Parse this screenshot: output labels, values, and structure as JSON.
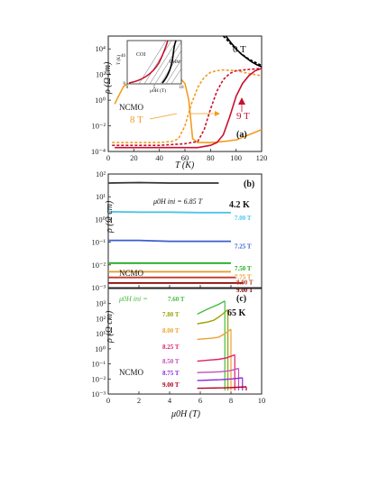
{
  "figure": {
    "ylabel_rho": "ρ (Ω cm)",
    "panels": [
      {
        "key": "a",
        "label": "(a)"
      },
      {
        "key": "b",
        "label": "(b)"
      },
      {
        "key": "c",
        "label": "(c)"
      }
    ]
  },
  "chart_data": [
    {
      "panel": "(a)",
      "type": "line",
      "xlabel": "T (K)",
      "ylabel": "ρ (Ω cm)",
      "xlim": [
        0,
        120
      ],
      "ylim_log": [
        0.0001,
        100000
      ],
      "xticks": [
        "0",
        "20",
        "40",
        "60",
        "80",
        "100",
        "120"
      ],
      "yticks": [
        "10⁻⁴",
        "10⁻²",
        "10⁰",
        "10²",
        "10⁴"
      ],
      "sample": "NCMO",
      "annotations": [
        "0 T",
        "8 T",
        "9 T"
      ],
      "colors": {
        "0T": "#000000",
        "8T": "#f39c1f",
        "9T": "#c8102e"
      },
      "series": [
        {
          "name": "0 T",
          "style": "solid",
          "x": [
            92,
            96,
            100,
            104,
            108,
            112,
            116,
            120
          ],
          "y": [
            100000,
            30000,
            10000,
            4000,
            2000,
            1000,
            600,
            400
          ]
        },
        {
          "name": "0 T",
          "style": "dashed",
          "x": [
            90,
            95,
            100,
            105,
            110,
            115,
            120
          ],
          "y": [
            100000,
            30000,
            9000,
            3500,
            1600,
            900,
            500
          ]
        },
        {
          "name": "8 T",
          "style": "solid",
          "x": [
            5,
            8,
            12,
            20,
            30,
            40,
            50,
            55,
            60,
            63,
            66,
            70,
            75,
            80,
            90,
            100,
            110,
            120
          ],
          "y": [
            0.5,
            2,
            12,
            40,
            60,
            80,
            100,
            70,
            20,
            1,
            0.001,
            0.0005,
            0.0005,
            0.0005,
            0.0006,
            0.0008,
            0.002,
            0.005
          ]
        },
        {
          "name": "8 T",
          "style": "dashed",
          "x": [
            3,
            10,
            20,
            30,
            40,
            50,
            55,
            60,
            65,
            70,
            75,
            80,
            85,
            90,
            100,
            110,
            120
          ],
          "y": [
            0.0005,
            0.0005,
            0.0005,
            0.0005,
            0.0005,
            0.0006,
            0.001,
            0.01,
            0.5,
            10,
            60,
            150,
            200,
            230,
            200,
            120,
            80
          ]
        },
        {
          "name": "9 T",
          "style": "solid",
          "x": [
            5,
            20,
            40,
            60,
            70,
            80,
            85,
            90,
            95,
            100,
            105,
            110,
            115,
            120
          ],
          "y": [
            0.0002,
            0.0002,
            0.0002,
            0.0002,
            0.0002,
            0.0003,
            0.0005,
            0.002,
            0.05,
            2,
            20,
            80,
            200,
            300
          ]
        },
        {
          "name": "9 T",
          "style": "dashed",
          "x": [
            3,
            20,
            40,
            60,
            70,
            75,
            80,
            85,
            90,
            95,
            100,
            110,
            120
          ],
          "y": [
            0.0003,
            0.0003,
            0.0003,
            0.0004,
            0.0006,
            0.005,
            0.2,
            5,
            40,
            120,
            200,
            250,
            300
          ]
        }
      ],
      "inset": {
        "xlabel": "μ0H (T)",
        "ylabel": "T (K)",
        "xlim": [
          0,
          10
        ],
        "ylim": [
          0,
          60
        ],
        "xticks": [
          "0",
          "5",
          "10"
        ],
        "yticks": [
          "0",
          "40"
        ],
        "regions": [
          "COI",
          "FMM"
        ]
      }
    },
    {
      "panel": "(b)",
      "type": "line",
      "xlabel": "",
      "ylabel": "ρ (Ω cm)",
      "xlim": [
        0,
        10
      ],
      "ylim_log": [
        0.001,
        100
      ],
      "temperature": "4.2 K",
      "sample": "NCMO",
      "yticks": [
        "10⁻³",
        "10⁻²",
        "10⁻¹",
        "10⁰",
        "10¹",
        "10²"
      ],
      "field_label": "μ0H ini = 6.85 T",
      "series": [
        {
          "name": "6.85 T",
          "color": "#333333",
          "x": [
            0,
            2,
            4,
            6,
            7.2
          ],
          "y": [
            40,
            42,
            40,
            40,
            40
          ]
        },
        {
          "name": "7.00 T",
          "color": "#4fc3e8",
          "x": [
            0,
            2,
            4,
            6,
            8
          ],
          "y": [
            2.2,
            2.1,
            2.1,
            2.0,
            2.0
          ]
        },
        {
          "name": "7.25 T",
          "color": "#3a5fcd",
          "x": [
            0,
            2,
            4,
            6,
            8
          ],
          "y": [
            0.12,
            0.12,
            0.11,
            0.11,
            0.11
          ]
        },
        {
          "name": "7.50 T",
          "color": "#22aa22",
          "x": [
            0,
            2,
            4,
            6,
            8
          ],
          "y": [
            0.012,
            0.012,
            0.012,
            0.012,
            0.012
          ]
        },
        {
          "name": "7.75 T",
          "color": "#e39a2a",
          "x": [
            0,
            2,
            4,
            6,
            8
          ],
          "y": [
            0.005,
            0.005,
            0.005,
            0.005,
            0.005
          ]
        },
        {
          "name": "8.00 T",
          "color": "#c0392b",
          "x": [
            0,
            2,
            4,
            6,
            8.3
          ],
          "y": [
            0.0028,
            0.0028,
            0.0028,
            0.0028,
            0.0028
          ]
        },
        {
          "name": "9.00 T",
          "color": "#8b0000",
          "x": [
            0,
            2,
            4,
            6,
            8.8
          ],
          "y": [
            0.0016,
            0.0016,
            0.0016,
            0.0016,
            0.0016
          ]
        }
      ]
    },
    {
      "panel": "(c)",
      "type": "line",
      "xlabel": "μ0H (T)",
      "ylabel": "ρ (Ω cm)",
      "xlim": [
        0,
        10
      ],
      "ylim_log": [
        0.001,
        10000
      ],
      "xticks": [
        "0",
        "2",
        "4",
        "6",
        "8",
        "10"
      ],
      "temperature": "65 K",
      "sample": "NCMO",
      "yticks": [
        "10⁻³",
        "10⁻²",
        "10⁻¹",
        "10⁰",
        "10¹",
        "10²",
        "10³"
      ],
      "field_label_prefix": "μ0H ini = ",
      "series": [
        {
          "name": "7.60 T",
          "color": "#44bb44",
          "x": [
            7.6,
            7.2,
            6.8,
            6.4,
            6.0,
            5.8
          ],
          "y": [
            1500,
            900,
            600,
            400,
            250,
            200
          ]
        },
        {
          "name": "7.80 T",
          "color": "#9aa200",
          "x": [
            7.8,
            7.3,
            6.9,
            6.5,
            6.0,
            5.8
          ],
          "y": [
            400,
            150,
            80,
            60,
            50,
            45
          ]
        },
        {
          "name": "8.00 T",
          "color": "#f0a030",
          "x": [
            8.0,
            7.6,
            7.2,
            6.7,
            6.1,
            5.8
          ],
          "y": [
            20,
            10,
            6,
            5,
            4.5,
            4.2
          ]
        },
        {
          "name": "8.25 T",
          "color": "#e0206a",
          "x": [
            8.25,
            7.7,
            7.2,
            6.6,
            6.0,
            5.8
          ],
          "y": [
            0.4,
            0.25,
            0.2,
            0.18,
            0.16,
            0.15
          ]
        },
        {
          "name": "8.50 T",
          "color": "#c050c0",
          "x": [
            8.5,
            7.9,
            7.3,
            6.6,
            6.0,
            5.8
          ],
          "y": [
            0.05,
            0.035,
            0.03,
            0.028,
            0.027,
            0.026
          ]
        },
        {
          "name": "8.75 T",
          "color": "#8a2be2",
          "x": [
            8.75,
            8.0,
            7.3,
            6.6,
            6.0,
            5.8
          ],
          "y": [
            0.012,
            0.01,
            0.009,
            0.0085,
            0.008,
            0.008
          ]
        },
        {
          "name": "9.00 T",
          "color": "#b0001e",
          "x": [
            9.0,
            8.4,
            7.6,
            6.8,
            6.0,
            5.8
          ],
          "y": [
            0.003,
            0.0028,
            0.0026,
            0.0025,
            0.0024,
            0.0024
          ]
        }
      ]
    }
  ]
}
